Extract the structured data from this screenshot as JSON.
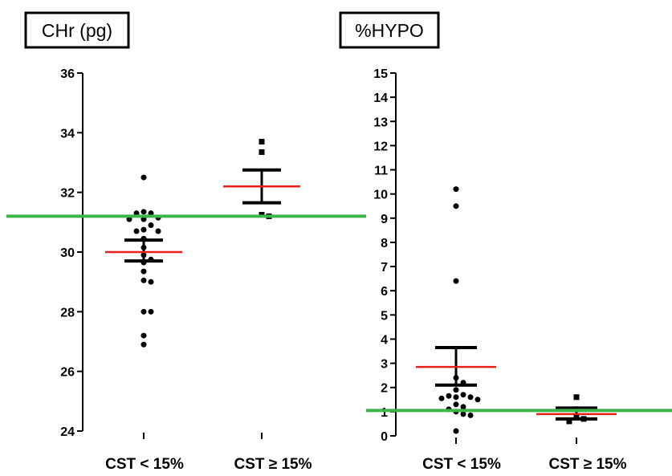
{
  "chart_data": [
    {
      "type": "scatter",
      "title": "CHr (pg)",
      "categories": [
        "CST < 15%",
        "CST ≥ 15%"
      ],
      "ylim": [
        24,
        36
      ],
      "yticks": [
        24,
        26,
        28,
        30,
        32,
        34,
        36
      ],
      "series": [
        {
          "category": "CST < 15%",
          "points": [
            32.5,
            31.35,
            31.3,
            31.3,
            31.15,
            31.1,
            31.1,
            30.9,
            30.75,
            30.7,
            30.7,
            30.45,
            30.15,
            29.9,
            29.75,
            29.65,
            29.35,
            29.05,
            29.0,
            28.0,
            28.0,
            27.2,
            26.9
          ],
          "mean": 30.0,
          "sem_upper": 30.4,
          "sem_lower": 29.7
        },
        {
          "category": "CST ≥ 15%",
          "points": [
            33.7,
            33.35,
            31.25,
            31.2
          ],
          "mean": 32.2,
          "sem_upper": 32.75,
          "sem_lower": 31.65
        }
      ],
      "reference_line": 31.2,
      "colors": {
        "points": "#000000",
        "mean": "#e8201a",
        "sem": "#000000",
        "reference": "#3cb54a"
      }
    },
    {
      "type": "scatter",
      "title": "%HYPO",
      "categories": [
        "CST < 15%",
        "CST ≥ 15%"
      ],
      "ylim": [
        0,
        15
      ],
      "yticks": [
        0,
        1,
        2,
        3,
        4,
        5,
        6,
        7,
        8,
        9,
        10,
        11,
        12,
        13,
        14,
        15
      ],
      "series": [
        {
          "category": "CST < 15%",
          "points": [
            10.2,
            9.5,
            6.4,
            2.4,
            2.2,
            1.9,
            1.7,
            1.65,
            1.6,
            1.6,
            1.55,
            1.5,
            1.3,
            1.2,
            1.1,
            1.0,
            0.9,
            0.85,
            0.2
          ],
          "mean": 2.85,
          "sem_upper": 3.65,
          "sem_lower": 2.1
        },
        {
          "category": "CST ≥ 15%",
          "points": [
            1.6,
            1.1,
            0.8,
            0.7,
            0.6
          ],
          "mean": 0.9,
          "sem_upper": 1.15,
          "sem_lower": 0.7
        }
      ],
      "reference_line": 1.05,
      "colors": {
        "points": "#000000",
        "mean": "#e8201a",
        "sem": "#000000",
        "reference": "#3cb54a"
      }
    }
  ]
}
